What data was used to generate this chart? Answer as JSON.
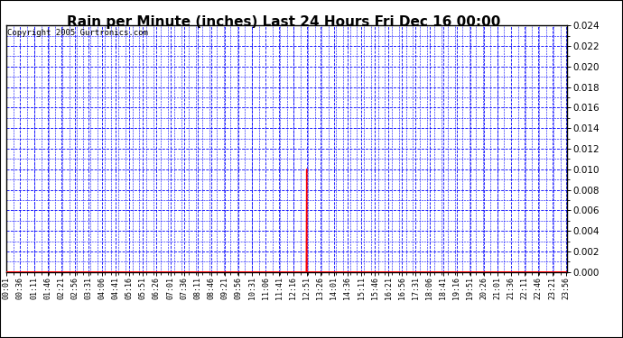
{
  "title": "Rain per Minute (inches) Last 24 Hours Fri Dec 16 00:00",
  "title_fontsize": 11,
  "copyright_text": "Copyright 2005 Gurtronics.com",
  "copyright_fontsize": 6.5,
  "ylabel_right_values": [
    0.0,
    0.002,
    0.004,
    0.006,
    0.008,
    0.01,
    0.012,
    0.014,
    0.016,
    0.018,
    0.02,
    0.022,
    0.024
  ],
  "ylim": [
    0.0,
    0.024
  ],
  "background_color": "#ffffff",
  "plot_bg_color": "#ffffff",
  "border_color": "#000000",
  "grid_color": "#0000ff",
  "baseline_color": "#ff0000",
  "spike_color": "#ff0000",
  "spike_value": 0.01,
  "x_labels": [
    "00:01",
    "00:36",
    "01:11",
    "01:46",
    "02:21",
    "02:56",
    "03:31",
    "04:06",
    "04:41",
    "05:16",
    "05:51",
    "06:26",
    "07:01",
    "07:36",
    "08:11",
    "08:46",
    "09:21",
    "09:56",
    "10:31",
    "11:06",
    "11:41",
    "12:16",
    "12:51",
    "13:26",
    "14:01",
    "14:36",
    "15:11",
    "15:46",
    "16:21",
    "16:56",
    "17:31",
    "18:06",
    "18:41",
    "19:16",
    "19:51",
    "20:26",
    "21:01",
    "21:36",
    "22:11",
    "22:46",
    "23:21",
    "23:56"
  ],
  "n_points": 1440,
  "spike_minute": 771
}
